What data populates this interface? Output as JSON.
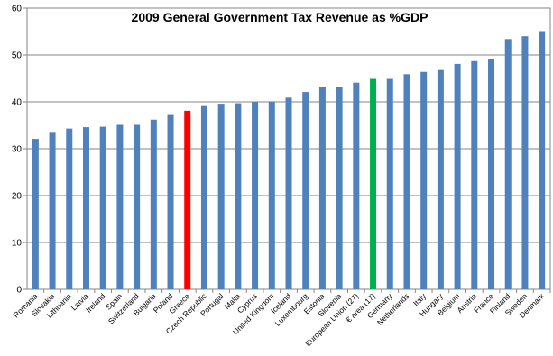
{
  "chart_data": {
    "type": "bar",
    "title": "2009 General Government Tax Revenue as %GDP",
    "xlabel": "",
    "ylabel": "",
    "ylim": [
      0,
      60
    ],
    "yticks": [
      0,
      10,
      20,
      30,
      40,
      50,
      60
    ],
    "grid": true,
    "legend": "none",
    "categories": [
      "Romania",
      "Slovakia",
      "Lithuania",
      "Latvia",
      "Ireland",
      "Spain",
      "Switzerland",
      "Bulgaria",
      "Poland",
      "Greece",
      "Czech Republic",
      "Portugal",
      "Malta",
      "Cyprus",
      "United Kingdom",
      "Iceland",
      "Luxembourg",
      "Estonia",
      "Slovenia",
      "European Union (27)",
      "€ area (17)",
      "Germany",
      "Netherlands",
      "Italy",
      "Hungary",
      "Belgium",
      "Austria",
      "France",
      "Finland",
      "Sweden",
      "Denmark"
    ],
    "values": [
      32.1,
      33.4,
      34.3,
      34.6,
      34.7,
      35.1,
      35.1,
      36.2,
      37.2,
      38.1,
      39.1,
      39.6,
      39.7,
      40.0,
      40.1,
      40.9,
      42.1,
      43.1,
      43.1,
      44.1,
      44.9,
      44.9,
      45.9,
      46.4,
      46.8,
      48.1,
      48.7,
      49.2,
      53.4,
      54.0,
      55.1
    ],
    "colors": {
      "default": "#4f81bd",
      "highlights": {
        "Greece": "#ff0000",
        "€ area (17)": "#00b050"
      }
    }
  }
}
